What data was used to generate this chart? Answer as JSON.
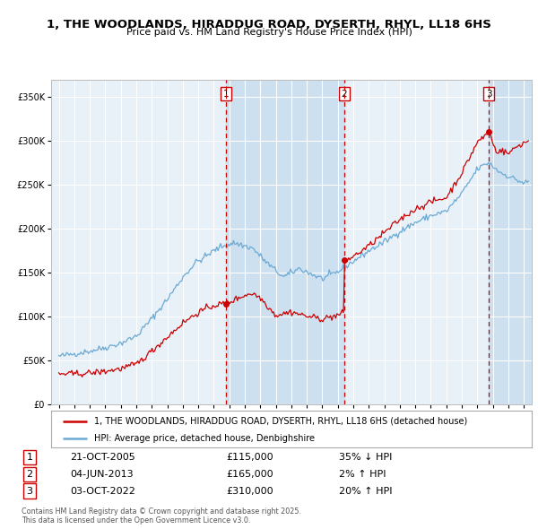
{
  "title": "1, THE WOODLANDS, HIRADDUG ROAD, DYSERTH, RHYL, LL18 6HS",
  "subtitle": "Price paid vs. HM Land Registry's House Price Index (HPI)",
  "red_label": "1, THE WOODLANDS, HIRADDUG ROAD, DYSERTH, RHYL, LL18 6HS (detached house)",
  "blue_label": "HPI: Average price, detached house, Denbighshire",
  "transactions": [
    {
      "num": 1,
      "date": "21-OCT-2005",
      "price": 115000,
      "pct": "35%",
      "dir": "↓",
      "x_year": 2005.8
    },
    {
      "num": 2,
      "date": "04-JUN-2013",
      "price": 165000,
      "pct": "2%",
      "dir": "↑",
      "x_year": 2013.4
    },
    {
      "num": 3,
      "date": "03-OCT-2022",
      "price": 310000,
      "pct": "20%",
      "dir": "↑",
      "x_year": 2022.75
    }
  ],
  "footnote": "Contains HM Land Registry data © Crown copyright and database right 2025.\nThis data is licensed under the Open Government Licence v3.0.",
  "ylim": [
    0,
    370000
  ],
  "xlim_start": 1994.5,
  "xlim_end": 2025.5,
  "yticks": [
    0,
    50000,
    100000,
    150000,
    200000,
    250000,
    300000,
    350000
  ],
  "ytick_labels": [
    "£0",
    "£50K",
    "£100K",
    "£150K",
    "£200K",
    "£250K",
    "£300K",
    "£350K"
  ],
  "xticks": [
    1995,
    1996,
    1997,
    1998,
    1999,
    2000,
    2001,
    2002,
    2003,
    2004,
    2005,
    2006,
    2007,
    2008,
    2009,
    2010,
    2011,
    2012,
    2013,
    2014,
    2015,
    2016,
    2017,
    2018,
    2019,
    2020,
    2021,
    2022,
    2023,
    2024,
    2025
  ],
  "background_color": "#ffffff",
  "plot_bg_color": "#e8f0f8",
  "shaded_bg_color": "#cde0f0",
  "grid_color": "#ffffff",
  "red_color": "#cc0000",
  "blue_color": "#6aaad4",
  "vline_color": "#cc0000",
  "marker_color": "#cc0000",
  "sale_prices": [
    115000,
    165000,
    310000
  ]
}
